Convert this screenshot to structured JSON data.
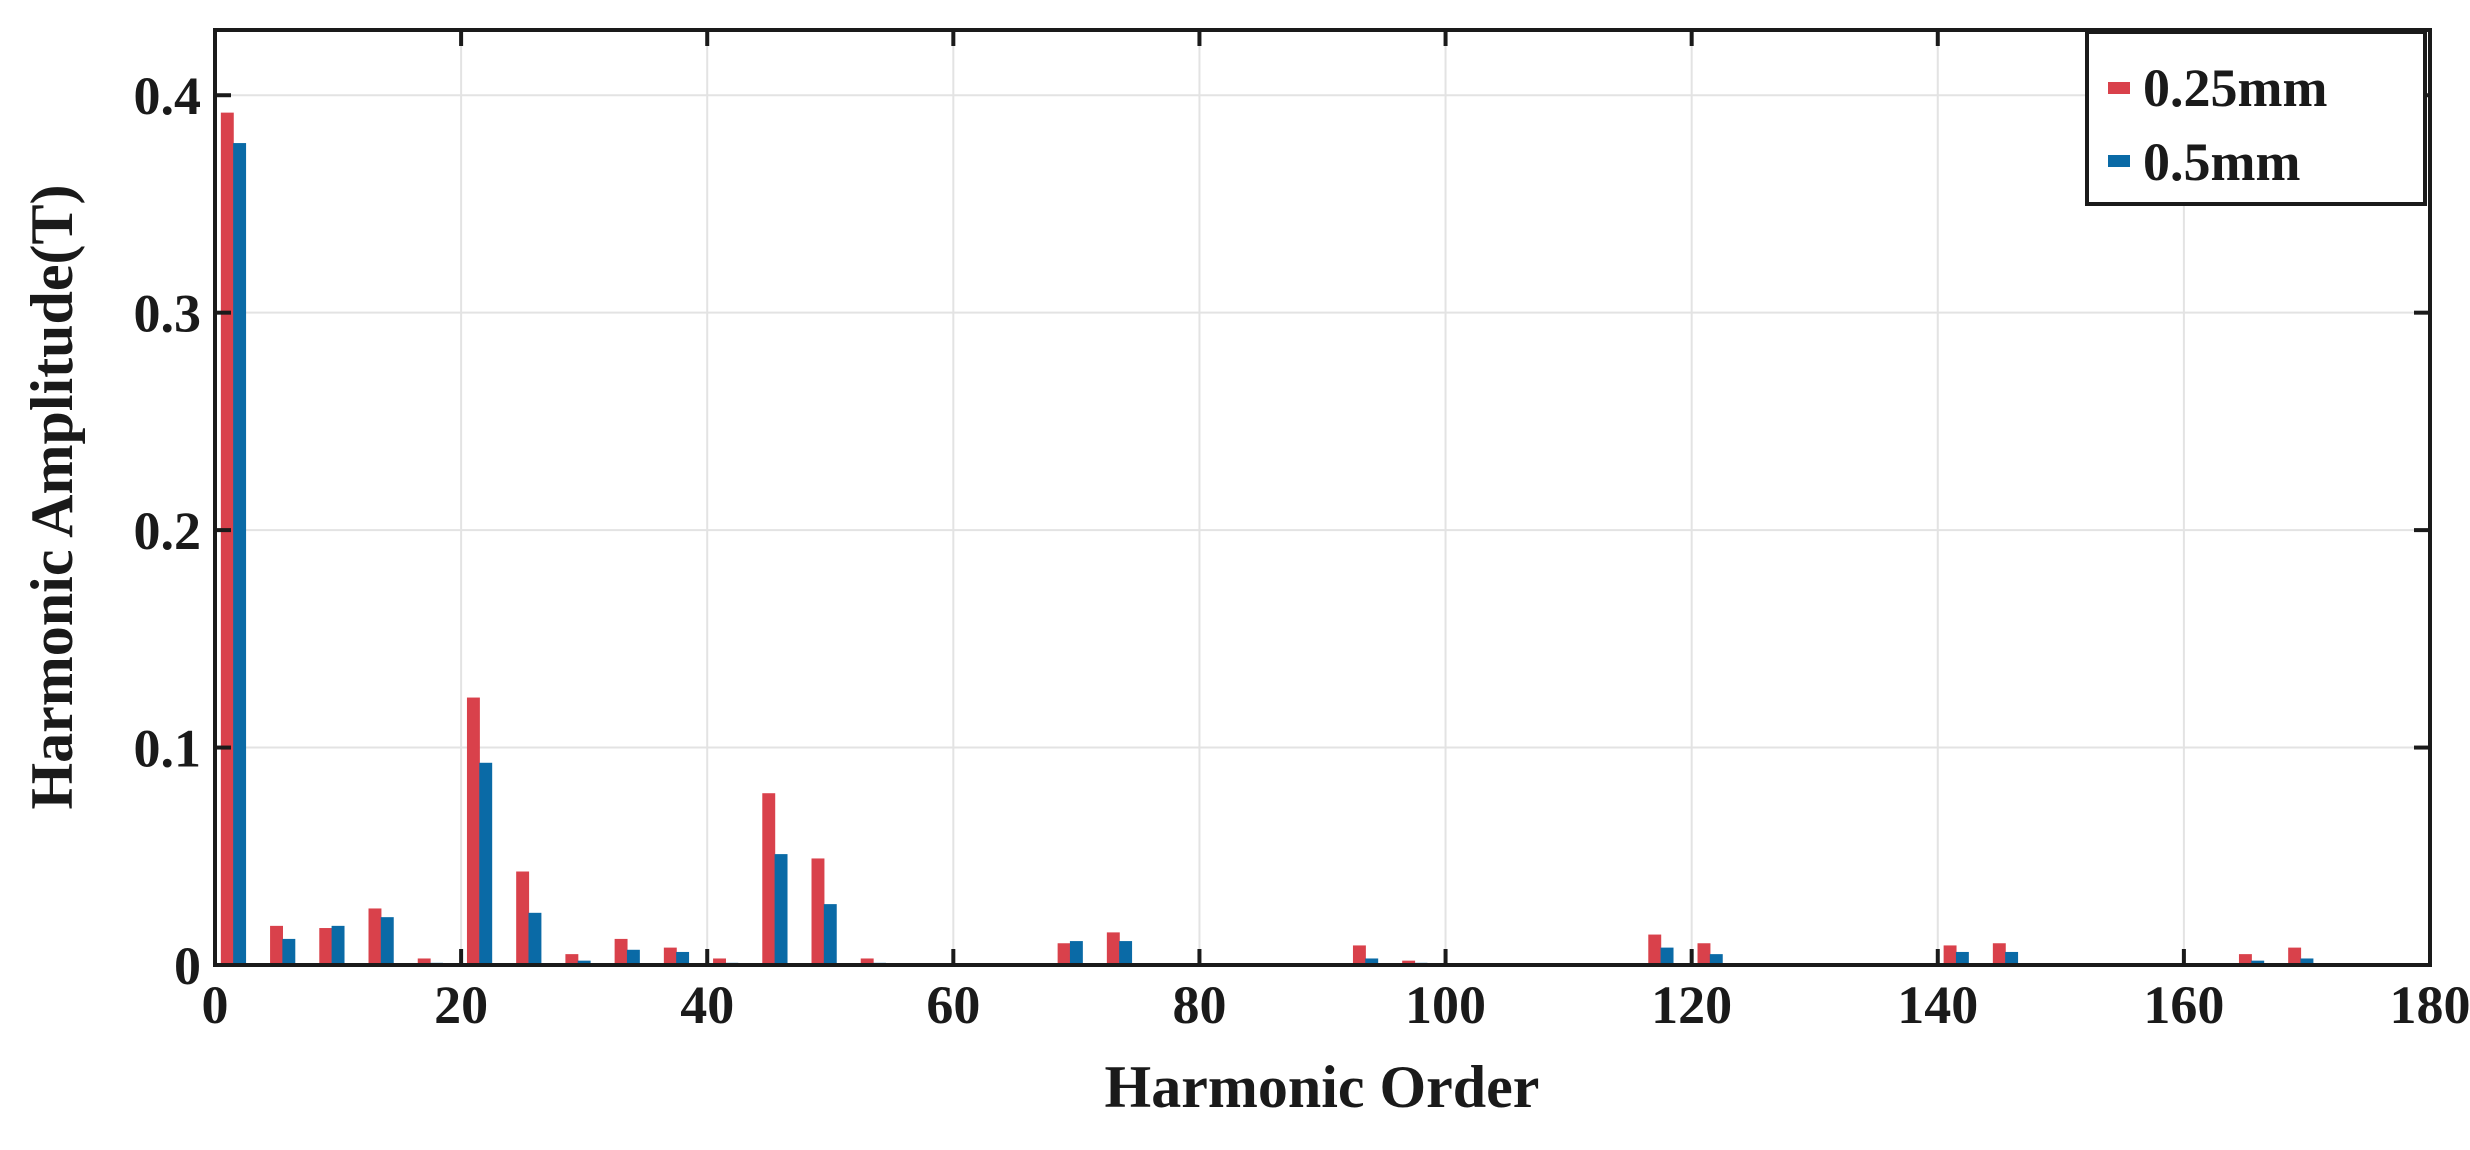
{
  "chart_data": {
    "type": "bar",
    "xlabel": "Harmonic Order",
    "ylabel": "Harmonic Amplitude(T)",
    "xlim": [
      0,
      180
    ],
    "ylim": [
      0,
      0.43
    ],
    "xticks": [
      0,
      20,
      40,
      60,
      80,
      100,
      120,
      140,
      160,
      180
    ],
    "xtick_labels": [
      "0",
      "20",
      "40",
      "60",
      "80",
      "100",
      "120",
      "140",
      "160",
      "180"
    ],
    "yticks": [
      0,
      0.1,
      0.2,
      0.3,
      0.4
    ],
    "ytick_labels": [
      "0",
      "0.1",
      "0.2",
      "0.3",
      "0.4"
    ],
    "grid": true,
    "legend_position": "top-right",
    "colors": {
      "0.25mm": "#d9414b",
      "0.5mm": "#0a6aa6"
    },
    "series": [
      {
        "name": "0.25mm",
        "x": [
          1,
          5,
          9,
          13,
          17,
          21,
          25,
          29,
          33,
          37,
          41,
          45,
          49,
          53,
          69,
          73,
          93,
          97,
          117,
          121,
          141,
          145,
          165,
          169
        ],
        "values": [
          0.392,
          0.018,
          0.017,
          0.026,
          0.003,
          0.123,
          0.043,
          0.005,
          0.012,
          0.008,
          0.003,
          0.079,
          0.049,
          0.003,
          0.01,
          0.015,
          0.009,
          0.002,
          0.014,
          0.01,
          0.009,
          0.01,
          0.005,
          0.008
        ]
      },
      {
        "name": "0.5mm",
        "x": [
          2,
          6,
          10,
          14,
          18,
          22,
          26,
          30,
          34,
          38,
          42,
          46,
          50,
          54,
          70,
          74,
          94,
          98,
          118,
          122,
          142,
          146,
          166,
          170
        ],
        "values": [
          0.378,
          0.012,
          0.018,
          0.022,
          0.001,
          0.093,
          0.024,
          0.002,
          0.007,
          0.006,
          0.001,
          0.051,
          0.028,
          0.001,
          0.011,
          0.011,
          0.003,
          0.001,
          0.008,
          0.005,
          0.006,
          0.006,
          0.002,
          0.003
        ]
      }
    ]
  }
}
